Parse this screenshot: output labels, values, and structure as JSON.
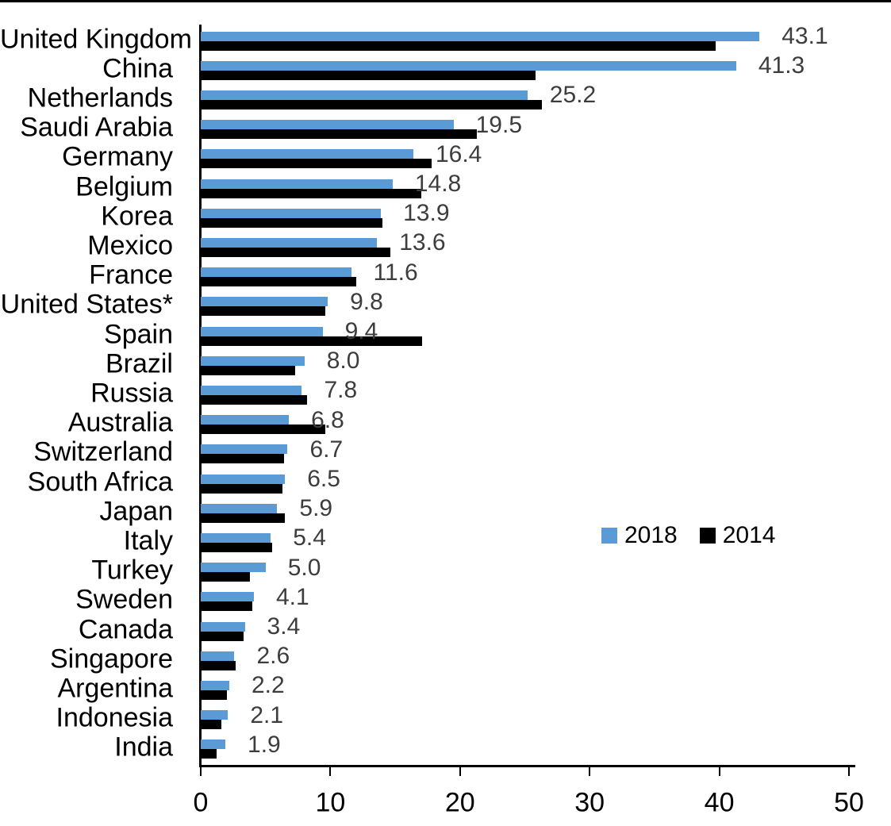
{
  "chart_data": {
    "type": "bar",
    "orientation": "horizontal",
    "title": "",
    "xlabel": "",
    "ylabel": "",
    "xlim": [
      0,
      50
    ],
    "x_ticks": [
      0,
      10,
      20,
      30,
      40,
      50
    ],
    "grid": false,
    "legend_position": "middle-right",
    "value_label_color": "#3d3d3d",
    "axis_color": "#000000",
    "categories": [
      "United Kingdom",
      "China",
      "Netherlands",
      "Saudi Arabia",
      "Germany",
      "Belgium",
      "Korea",
      "Mexico",
      "France",
      "United States*",
      "Spain",
      "Brazil",
      "Russia",
      "Australia",
      "Switzerland",
      "South Africa",
      "Japan",
      "Italy",
      "Turkey",
      "Sweden",
      "Canada",
      "Singapore",
      "Argentina",
      "Indonesia",
      "India"
    ],
    "series": [
      {
        "name": "2018",
        "color": "#5B9BD5",
        "data_labels_shown": true,
        "values": [
          43.1,
          41.3,
          25.2,
          19.5,
          16.4,
          14.8,
          13.9,
          13.6,
          11.6,
          9.8,
          9.4,
          8.0,
          7.8,
          6.8,
          6.7,
          6.5,
          5.9,
          5.4,
          5.0,
          4.1,
          3.4,
          2.6,
          2.2,
          2.1,
          1.9
        ],
        "data_labels": [
          "43.1",
          "41.3",
          "25.2",
          "19.5",
          "16.4",
          "14.8",
          "13.9",
          "13.6",
          "11.6",
          "9.8",
          "9.4",
          "8.0",
          "7.8",
          "6.8",
          "6.7",
          "6.5",
          "5.9",
          "5.4",
          "5.0",
          "4.1",
          "3.4",
          "2.6",
          "2.2",
          "2.1",
          "1.9"
        ]
      },
      {
        "name": "2014",
        "color": "#000000",
        "data_labels_shown": false,
        "values": [
          39.7,
          25.8,
          26.3,
          21.3,
          17.8,
          17.0,
          14.0,
          14.6,
          12.0,
          9.6,
          17.1,
          7.3,
          8.2,
          9.6,
          6.4,
          6.3,
          6.5,
          5.5,
          3.8,
          4.0,
          3.3,
          2.7,
          2.0,
          1.6,
          1.2
        ]
      }
    ]
  }
}
